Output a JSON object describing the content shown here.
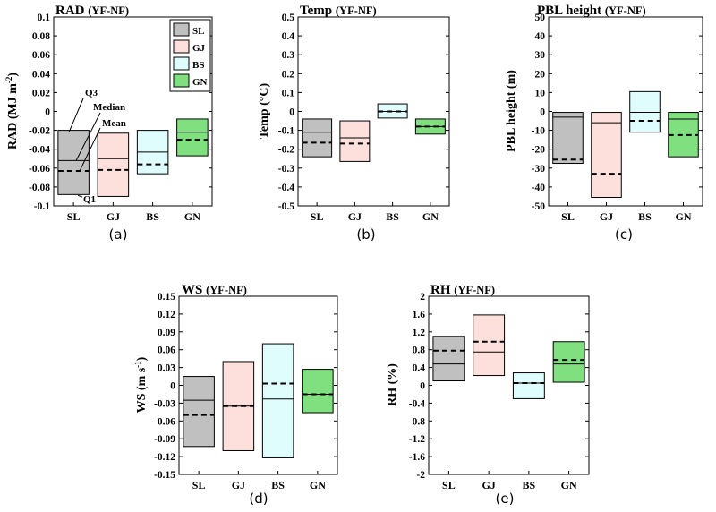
{
  "legend": {
    "items": [
      {
        "label": "SL",
        "color": "#c0c0c0"
      },
      {
        "label": "GJ",
        "color": "#fde0dc"
      },
      {
        "label": "BS",
        "color": "#e0fdfd"
      },
      {
        "label": "GN",
        "color": "#80e080"
      }
    ]
  },
  "annotations": {
    "q3": "Q3",
    "median": "Median",
    "mean": "Mean",
    "q1": "Q1"
  },
  "chart_data": [
    {
      "type": "box",
      "panel": "(a)",
      "title": "RAD (YF-NF)",
      "ylabel": "RAD (MJ m-2)",
      "ylim": [
        -0.1,
        0.1
      ],
      "yticks": [
        "-0.1",
        "-0.08",
        "-0.06",
        "-0.04",
        "-0.02",
        "0",
        "0.02",
        "0.04",
        "0.06",
        "0.08",
        "0.1"
      ],
      "categories": [
        "SL",
        "GJ",
        "BS",
        "GN"
      ],
      "boxes": [
        {
          "q1": -0.088,
          "q3": -0.02,
          "median": -0.052,
          "mean": -0.063
        },
        {
          "q1": -0.09,
          "q3": -0.023,
          "median": -0.05,
          "mean": -0.062
        },
        {
          "q1": -0.066,
          "q3": -0.02,
          "median": -0.043,
          "mean": -0.056
        },
        {
          "q1": -0.047,
          "q3": -0.008,
          "median": -0.022,
          "mean": -0.03
        }
      ]
    },
    {
      "type": "box",
      "panel": "(b)",
      "title": "Temp (YF-NF)",
      "ylabel": "Temp (°C)",
      "ylim": [
        -0.5,
        0.5
      ],
      "yticks": [
        "-0.5",
        "-0.4",
        "-0.3",
        "-0.2",
        "-0.1",
        "0",
        "0.1",
        "0.2",
        "0.3",
        "0.4",
        "0.5"
      ],
      "categories": [
        "SL",
        "GJ",
        "BS",
        "GN"
      ],
      "boxes": [
        {
          "q1": -0.24,
          "q3": -0.04,
          "median": -0.11,
          "mean": -0.165
        },
        {
          "q1": -0.265,
          "q3": -0.05,
          "median": -0.14,
          "mean": -0.17
        },
        {
          "q1": -0.035,
          "q3": 0.04,
          "median": 0.0,
          "mean": 0.0
        },
        {
          "q1": -0.12,
          "q3": -0.04,
          "median": -0.08,
          "mean": -0.08
        }
      ]
    },
    {
      "type": "box",
      "panel": "(c)",
      "title": "PBL height (YF-NF)",
      "ylabel": "PBL height (m)",
      "ylim": [
        -50,
        50
      ],
      "yticks": [
        "-50",
        "-40",
        "-30",
        "-20",
        "-10",
        "0",
        "10",
        "20",
        "30",
        "40",
        "50"
      ],
      "categories": [
        "SL",
        "GJ",
        "BS",
        "GN"
      ],
      "boxes": [
        {
          "q1": -27.5,
          "q3": -0.5,
          "median": -3.0,
          "mean": -25.5
        },
        {
          "q1": -45.5,
          "q3": -0.5,
          "median": -6.0,
          "mean": -33.0
        },
        {
          "q1": -11.0,
          "q3": 10.5,
          "median": -0.5,
          "mean": -5.0
        },
        {
          "q1": -24.0,
          "q3": -0.5,
          "median": -4.0,
          "mean": -12.5
        }
      ]
    },
    {
      "type": "box",
      "panel": "(d)",
      "title": "WS (YF-NF)",
      "ylabel": "WS (m s-1)",
      "ylim": [
        -0.15,
        0.15
      ],
      "yticks": [
        "-0.15",
        "-0.12",
        "-0.09",
        "-0.06",
        "-0.03",
        "0",
        "0.03",
        "0.06",
        "0.09",
        "0.12",
        "0.15"
      ],
      "categories": [
        "SL",
        "GJ",
        "BS",
        "GN"
      ],
      "boxes": [
        {
          "q1": -0.103,
          "q3": 0.015,
          "median": -0.025,
          "mean": -0.05
        },
        {
          "q1": -0.11,
          "q3": 0.04,
          "median": -0.035,
          "mean": -0.035
        },
        {
          "q1": -0.122,
          "q3": 0.07,
          "median": -0.023,
          "mean": 0.003
        },
        {
          "q1": -0.046,
          "q3": 0.027,
          "median": -0.015,
          "mean": -0.015
        }
      ]
    },
    {
      "type": "box",
      "panel": "(e)",
      "title": "RH (YF-NF)",
      "ylabel": "RH (%)",
      "ylim": [
        -2,
        2
      ],
      "yticks": [
        "-2",
        "-1.6",
        "-1.2",
        "-0.8",
        "-0.4",
        "0",
        "0.4",
        "0.8",
        "1.2",
        "1.6",
        "2"
      ],
      "categories": [
        "SL",
        "GJ",
        "BS",
        "GN"
      ],
      "boxes": [
        {
          "q1": 0.1,
          "q3": 1.1,
          "median": 0.48,
          "mean": 0.78
        },
        {
          "q1": 0.22,
          "q3": 1.58,
          "median": 0.75,
          "mean": 0.98
        },
        {
          "q1": -0.3,
          "q3": 0.28,
          "median": 0.05,
          "mean": 0.05
        },
        {
          "q1": 0.07,
          "q3": 0.98,
          "median": 0.48,
          "mean": 0.57
        }
      ]
    }
  ]
}
